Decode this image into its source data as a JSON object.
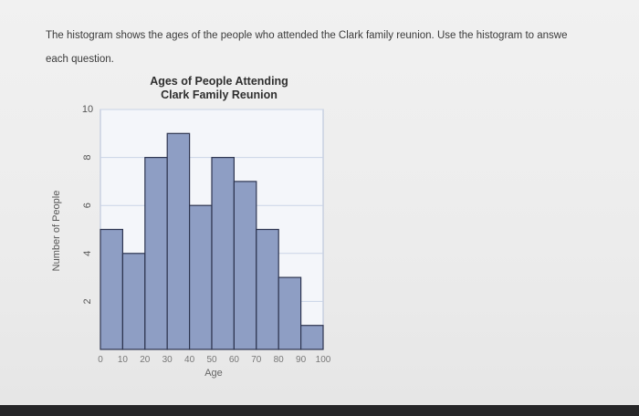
{
  "instructions": {
    "line1": "The histogram shows the ages of the people who attended the Clark family reunion. Use the histogram to answe",
    "line2": "each question."
  },
  "chart_data": {
    "type": "bar",
    "title": "Ages of People Attending",
    "subtitle": "Clark Family Reunion",
    "xlabel": "Age",
    "ylabel": "Number of People",
    "bin_edges": [
      0,
      10,
      20,
      30,
      40,
      50,
      60,
      70,
      80,
      90,
      100
    ],
    "x_tick_labels": [
      "0",
      "10",
      "20",
      "30",
      "40",
      "50",
      "60",
      "70",
      "80",
      "90",
      "100"
    ],
    "values": [
      5,
      4,
      8,
      9,
      6,
      8,
      7,
      5,
      3,
      1
    ],
    "ylim": [
      0,
      10
    ],
    "y_ticks": [
      2,
      4,
      6,
      8,
      10
    ],
    "grid": true,
    "colors": {
      "bar": "#8e9ec4",
      "bar_edge": "#2e3550",
      "grid": "#c9d3e6",
      "plot_border": "#b5c0d8"
    }
  }
}
